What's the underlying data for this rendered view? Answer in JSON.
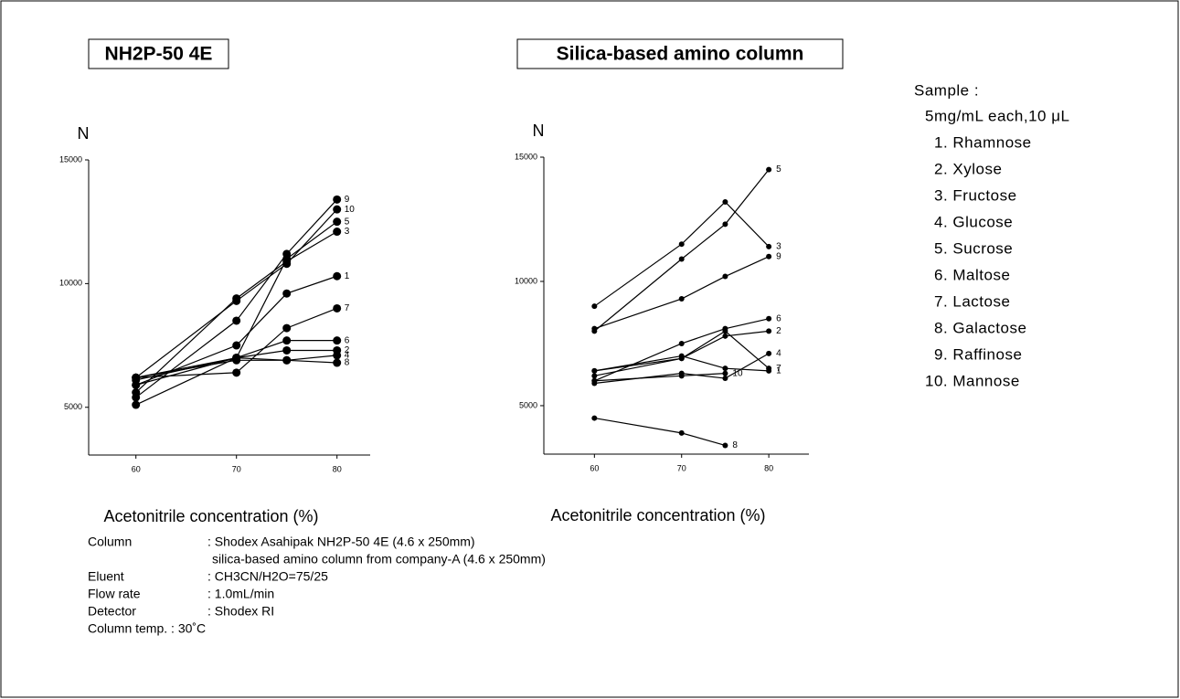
{
  "chart_data": [
    {
      "type": "line",
      "title": "NH2P-50 4E",
      "y_label": "N",
      "x_label": "Acetonitrile concentration (%)",
      "x": [
        60,
        70,
        75,
        80
      ],
      "xlim": [
        55.3,
        83.3
      ],
      "xticks": [
        60,
        70,
        80
      ],
      "ylim": [
        3070,
        15000
      ],
      "yticks": [
        5000,
        10000,
        15000
      ],
      "color": "#000000",
      "series": [
        {
          "name": "1",
          "values": [
            5900,
            7500,
            9600,
            10300
          ]
        },
        {
          "name": "2",
          "values": [
            6200,
            7000,
            7300,
            7300
          ]
        },
        {
          "name": "3",
          "values": [
            5600,
            9400,
            10900,
            12100
          ]
        },
        {
          "name": "4",
          "values": [
            6200,
            6900,
            6900,
            7100
          ]
        },
        {
          "name": "5",
          "values": [
            5100,
            7000,
            11000,
            12500
          ]
        },
        {
          "name": "6",
          "values": [
            5900,
            7000,
            7700,
            7700
          ]
        },
        {
          "name": "7",
          "values": [
            6200,
            6400,
            8200,
            9000
          ]
        },
        {
          "name": "8",
          "values": [
            6100,
            7000,
            6900,
            6800
          ]
        },
        {
          "name": "9",
          "values": [
            5400,
            8500,
            11200,
            13400
          ]
        },
        {
          "name": "10",
          "values": [
            6200,
            9300,
            10800,
            13000
          ]
        }
      ]
    },
    {
      "type": "line",
      "title": "Silica-based amino column",
      "y_label": "N",
      "x_label": "Acetonitrile concentration (%)",
      "x": [
        60,
        70,
        75,
        80
      ],
      "xlim": [
        54.2,
        84.6
      ],
      "xticks": [
        60,
        70,
        80
      ],
      "ylim": [
        3050,
        15000
      ],
      "yticks": [
        5000,
        10000,
        15000
      ],
      "color": "#000000",
      "series": [
        {
          "name": "1",
          "values": [
            6400,
            7000,
            6500,
            6400
          ]
        },
        {
          "name": "2",
          "values": [
            6400,
            6900,
            7800,
            8000
          ]
        },
        {
          "name": "3",
          "values": [
            9000,
            11500,
            13200,
            11400
          ]
        },
        {
          "name": "4",
          "values": [
            5900,
            6300,
            6100,
            7100
          ]
        },
        {
          "name": "5",
          "values": [
            8000,
            10900,
            12300,
            14500
          ]
        },
        {
          "name": "6",
          "values": [
            6000,
            7500,
            8100,
            8500
          ]
        },
        {
          "name": "7",
          "values": [
            6200,
            6900,
            8000,
            6500
          ]
        },
        {
          "name": "8",
          "values": [
            4500,
            3900,
            3400,
            null
          ]
        },
        {
          "name": "9",
          "values": [
            8100,
            9300,
            10200,
            11000
          ]
        },
        {
          "name": "10",
          "values": [
            6000,
            6200,
            6300,
            null
          ]
        }
      ]
    }
  ],
  "sample": {
    "title": "Sample :",
    "amount": "5mg/mL each,10 μL",
    "items": [
      "1. Rhamnose",
      "2. Xylose",
      "3. Fructose",
      "4. Glucose",
      "5. Sucrose",
      "6. Maltose",
      "7. Lactose",
      "8. Galactose",
      "9. Raffinose",
      "10. Mannose"
    ]
  },
  "conditions": [
    [
      "Column",
      ": Shodex Asahipak NH2P-50 4E (4.6 x 250mm)"
    ],
    [
      "",
      "silica-based amino column from company-A (4.6 x 250mm)"
    ],
    [
      "Eluent",
      ": CH3CN/H2O=75/25"
    ],
    [
      "Flow rate",
      ": 1.0mL/min"
    ],
    [
      "Detector",
      ": Shodex RI"
    ],
    [
      "Column temp. : 30˚C",
      ""
    ]
  ]
}
